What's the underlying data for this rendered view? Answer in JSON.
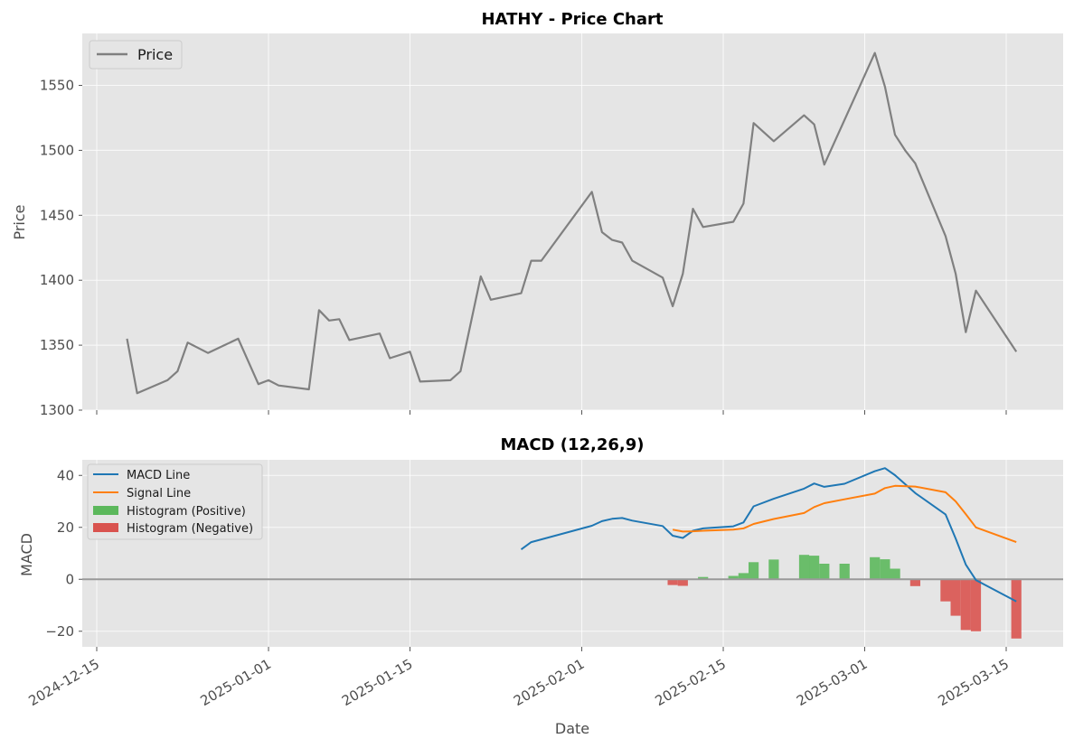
{
  "chart_data": [
    {
      "type": "line",
      "title": "HATHY - Price Chart",
      "xlabel": "",
      "ylabel": "Price",
      "ylim": [
        1300,
        1590
      ],
      "yticks": [
        1300,
        1350,
        1400,
        1450,
        1500,
        1550
      ],
      "xlim": [
        "2024-12-15",
        "2025-03-19"
      ],
      "grid": true,
      "legend_position": "top-left",
      "series": [
        {
          "name": "Price",
          "color": "#808080",
          "points": [
            [
              "2024-12-18",
              1355
            ],
            [
              "2024-12-19",
              1313
            ],
            [
              "2024-12-22",
              1323
            ],
            [
              "2024-12-23",
              1330
            ],
            [
              "2024-12-24",
              1352
            ],
            [
              "2024-12-26",
              1344
            ],
            [
              "2024-12-29",
              1355
            ],
            [
              "2024-12-31",
              1320
            ],
            [
              "2025-01-01",
              1323
            ],
            [
              "2025-01-02",
              1319
            ],
            [
              "2025-01-05",
              1316
            ],
            [
              "2025-01-06",
              1377
            ],
            [
              "2025-01-07",
              1369
            ],
            [
              "2025-01-08",
              1370
            ],
            [
              "2025-01-09",
              1354
            ],
            [
              "2025-01-12",
              1359
            ],
            [
              "2025-01-13",
              1340
            ],
            [
              "2025-01-15",
              1345
            ],
            [
              "2025-01-16",
              1322
            ],
            [
              "2025-01-19",
              1323
            ],
            [
              "2025-01-20",
              1330
            ],
            [
              "2025-01-22",
              1403
            ],
            [
              "2025-01-23",
              1385
            ],
            [
              "2025-01-26",
              1390
            ],
            [
              "2025-01-27",
              1415
            ],
            [
              "2025-01-28",
              1415
            ],
            [
              "2025-02-02",
              1468
            ],
            [
              "2025-02-03",
              1437
            ],
            [
              "2025-02-04",
              1431
            ],
            [
              "2025-02-05",
              1429
            ],
            [
              "2025-02-06",
              1415
            ],
            [
              "2025-02-09",
              1402
            ],
            [
              "2025-02-10",
              1380
            ],
            [
              "2025-02-11",
              1405
            ],
            [
              "2025-02-12",
              1455
            ],
            [
              "2025-02-13",
              1441
            ],
            [
              "2025-02-16",
              1445
            ],
            [
              "2025-02-17",
              1459
            ],
            [
              "2025-02-18",
              1521
            ],
            [
              "2025-02-20",
              1507
            ],
            [
              "2025-02-23",
              1527
            ],
            [
              "2025-02-24",
              1520
            ],
            [
              "2025-02-25",
              1489
            ],
            [
              "2025-03-02",
              1575
            ],
            [
              "2025-03-03",
              1549
            ],
            [
              "2025-03-04",
              1512
            ],
            [
              "2025-03-05",
              1500
            ],
            [
              "2025-03-06",
              1490
            ],
            [
              "2025-03-09",
              1434
            ],
            [
              "2025-03-10",
              1405
            ],
            [
              "2025-03-11",
              1360
            ],
            [
              "2025-03-12",
              1392
            ],
            [
              "2025-03-16",
              1345
            ]
          ]
        }
      ]
    },
    {
      "type": "line",
      "title": "MACD (12,26,9)",
      "xlabel": "Date",
      "ylabel": "MACD",
      "ylim": [
        -26,
        46
      ],
      "yticks": [
        -20,
        0,
        20,
        40
      ],
      "xlim": [
        "2024-12-15",
        "2025-03-19"
      ],
      "xticks": [
        "2024-12-15",
        "2025-01-01",
        "2025-01-15",
        "2025-02-01",
        "2025-02-15",
        "2025-03-01",
        "2025-03-15"
      ],
      "grid": true,
      "legend_position": "top-left",
      "zero_line": 0,
      "series": [
        {
          "name": "MACD Line",
          "color": "#1f77b4",
          "points": [
            [
              "2025-01-26",
              11.5
            ],
            [
              "2025-01-27",
              14.3
            ],
            [
              "2025-02-02",
              20.6
            ],
            [
              "2025-02-03",
              22.4
            ],
            [
              "2025-02-04",
              23.3
            ],
            [
              "2025-02-05",
              23.6
            ],
            [
              "2025-02-06",
              22.6
            ],
            [
              "2025-02-09",
              20.5
            ],
            [
              "2025-02-10",
              16.8
            ],
            [
              "2025-02-11",
              15.9
            ],
            [
              "2025-02-12",
              18.7
            ],
            [
              "2025-02-13",
              19.6
            ],
            [
              "2025-02-16",
              20.4
            ],
            [
              "2025-02-17",
              21.9
            ],
            [
              "2025-02-18",
              28.1
            ],
            [
              "2025-02-20",
              31.0
            ],
            [
              "2025-02-23",
              34.9
            ],
            [
              "2025-02-24",
              36.9
            ],
            [
              "2025-02-25",
              35.6
            ],
            [
              "2025-02-27",
              36.8
            ],
            [
              "2025-03-02",
              41.6
            ],
            [
              "2025-03-03",
              42.8
            ],
            [
              "2025-03-04",
              40.1
            ],
            [
              "2025-03-06",
              33.2
            ],
            [
              "2025-03-09",
              25.0
            ],
            [
              "2025-03-10",
              15.7
            ],
            [
              "2025-03-11",
              5.7
            ],
            [
              "2025-03-12",
              -0.3
            ],
            [
              "2025-03-16",
              -8.5
            ]
          ]
        },
        {
          "name": "Signal Line",
          "color": "#ff7f0e",
          "points": [
            [
              "2025-02-10",
              19.1
            ],
            [
              "2025-02-11",
              18.4
            ],
            [
              "2025-02-12",
              18.5
            ],
            [
              "2025-02-13",
              18.7
            ],
            [
              "2025-02-16",
              19.1
            ],
            [
              "2025-02-17",
              19.6
            ],
            [
              "2025-02-18",
              21.3
            ],
            [
              "2025-02-20",
              23.2
            ],
            [
              "2025-02-23",
              25.5
            ],
            [
              "2025-02-24",
              27.8
            ],
            [
              "2025-02-25",
              29.3
            ],
            [
              "2025-02-27",
              30.8
            ],
            [
              "2025-03-02",
              33.0
            ],
            [
              "2025-03-03",
              35.1
            ],
            [
              "2025-03-04",
              36.0
            ],
            [
              "2025-03-06",
              35.7
            ],
            [
              "2025-03-09",
              33.5
            ],
            [
              "2025-03-10",
              30.0
            ],
            [
              "2025-03-11",
              25.1
            ],
            [
              "2025-03-12",
              20.0
            ],
            [
              "2025-03-16",
              14.3
            ]
          ]
        }
      ],
      "histogram": {
        "positive": {
          "name": "Histogram (Positive)",
          "color": "#5cb85c"
        },
        "negative": {
          "name": "Histogram (Negative)",
          "color": "#d9534f"
        },
        "bars": [
          [
            "2025-02-10",
            -2.2
          ],
          [
            "2025-02-11",
            -2.5
          ],
          [
            "2025-02-13",
            0.9
          ],
          [
            "2025-02-16",
            1.3
          ],
          [
            "2025-02-17",
            2.4
          ],
          [
            "2025-02-18",
            6.6
          ],
          [
            "2025-02-20",
            7.6
          ],
          [
            "2025-02-23",
            9.4
          ],
          [
            "2025-02-24",
            9.1
          ],
          [
            "2025-02-25",
            6.0
          ],
          [
            "2025-02-27",
            6.0
          ],
          [
            "2025-03-02",
            8.5
          ],
          [
            "2025-03-03",
            7.7
          ],
          [
            "2025-03-04",
            4.1
          ],
          [
            "2025-03-05",
            0.3
          ],
          [
            "2025-03-06",
            -2.6
          ],
          [
            "2025-03-09",
            -8.5
          ],
          [
            "2025-03-10",
            -14.0
          ],
          [
            "2025-03-11",
            -19.5
          ],
          [
            "2025-03-12",
            -20.0
          ],
          [
            "2025-03-16",
            -22.8
          ]
        ]
      }
    }
  ]
}
